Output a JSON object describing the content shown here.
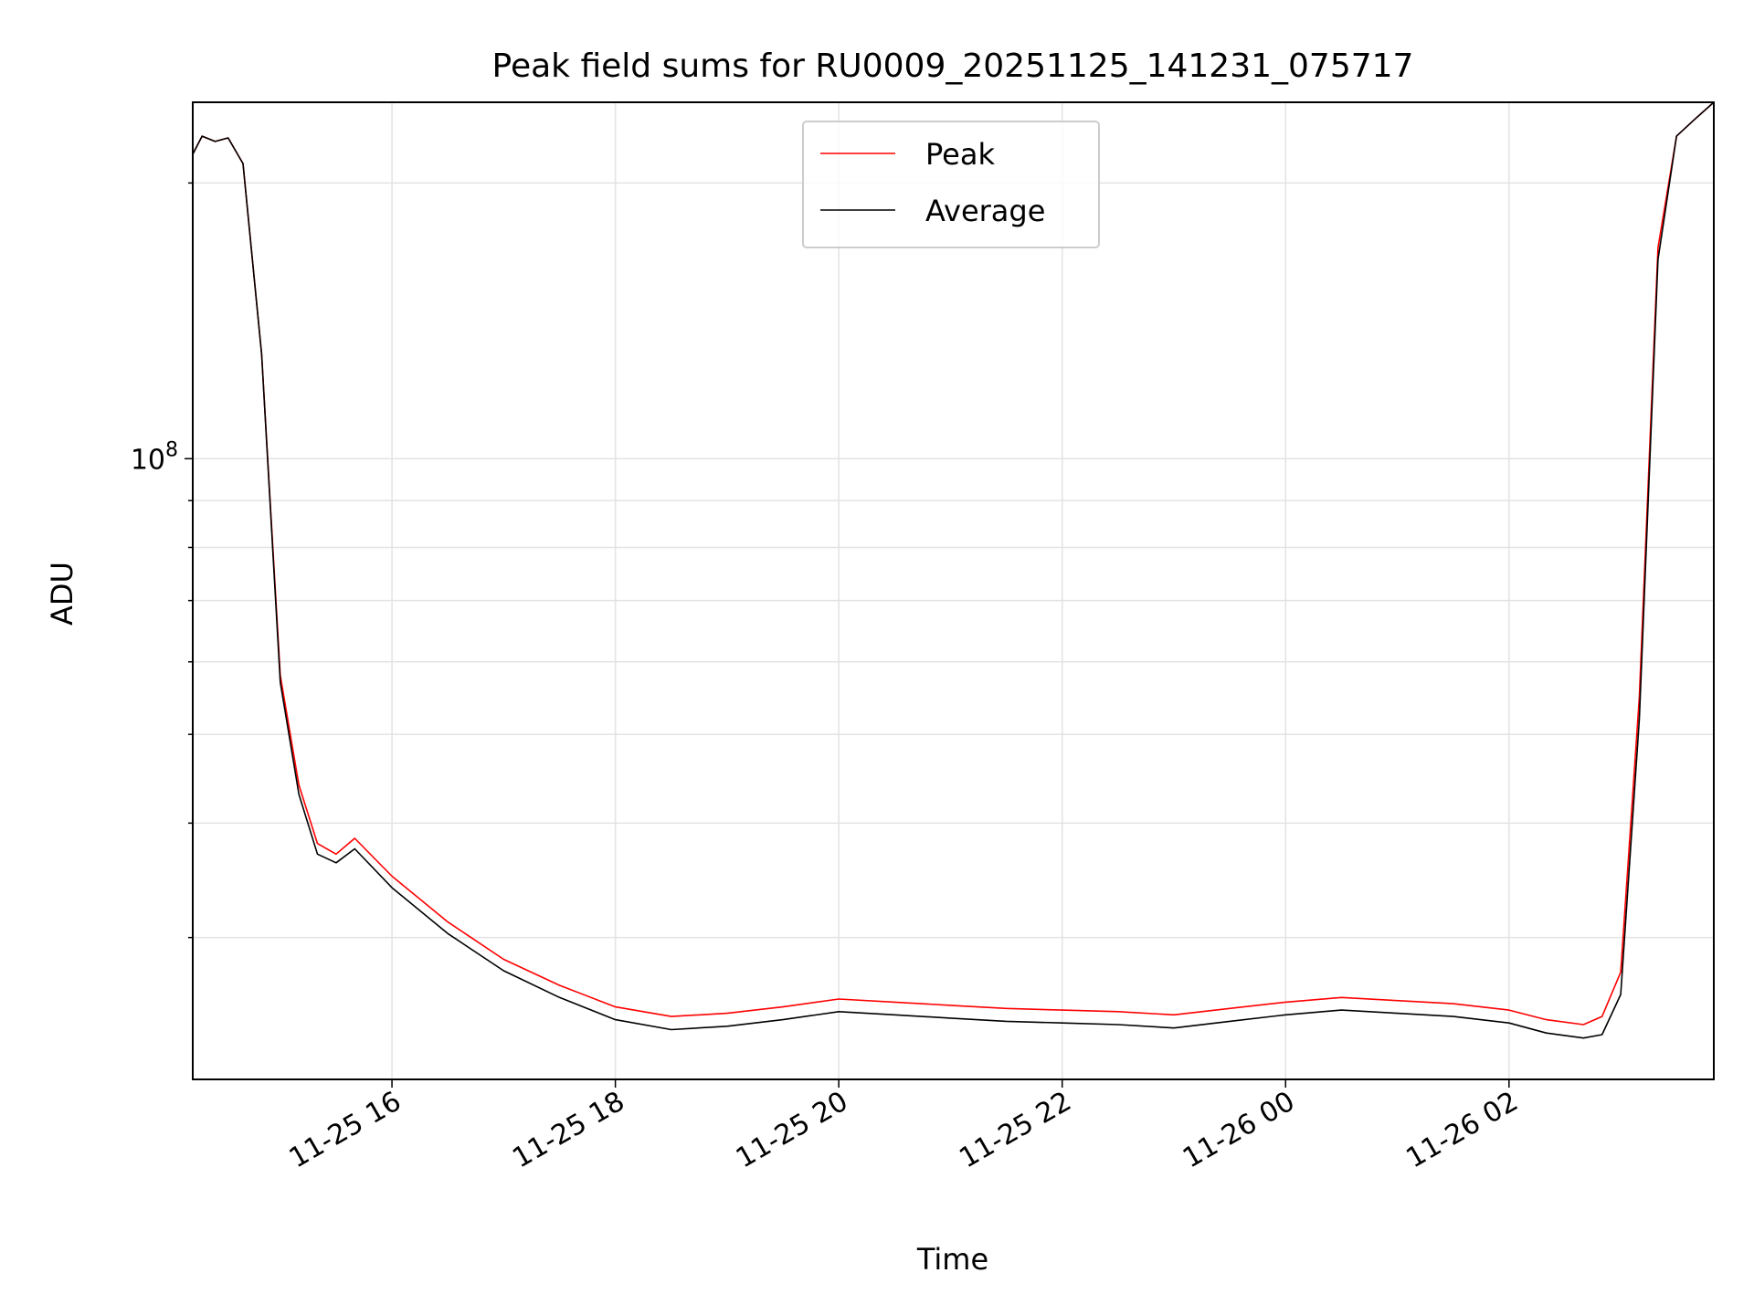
{
  "chart_data": {
    "type": "line",
    "title": "Peak field sums for RU0009_20251125_141231_075717",
    "xlabel": "Time",
    "ylabel": "ADU",
    "y_scale": "log",
    "ylim": [
      21000000,
      245000000
    ],
    "xlim": [
      "2025-11-25 14:13",
      "2025-11-26 03:50"
    ],
    "x_ticks": [
      "11-25 16",
      "11-25 18",
      "11-25 20",
      "11-25 22",
      "11-26 00",
      "11-26 02"
    ],
    "x_tick_values": [
      "2025-11-25 16:00",
      "2025-11-25 18:00",
      "2025-11-25 20:00",
      "2025-11-25 22:00",
      "2025-11-26 00:00",
      "2025-11-26 02:00"
    ],
    "y_major_ticks": [
      {
        "value": 100000000,
        "base": "10",
        "exp": "8"
      }
    ],
    "y_minor_ticks": [
      30000000,
      40000000,
      50000000,
      60000000,
      70000000,
      80000000,
      90000000,
      200000000
    ],
    "grid": true,
    "legend": {
      "position": "top-center",
      "entries": [
        "Peak",
        "Average"
      ]
    },
    "series": [
      {
        "name": "Peak",
        "color": "#ff0000",
        "x": [
          "2025-11-25 14:13",
          "2025-11-25 14:18",
          "2025-11-25 14:25",
          "2025-11-25 14:32",
          "2025-11-25 14:40",
          "2025-11-25 14:50",
          "2025-11-25 15:00",
          "2025-11-25 15:10",
          "2025-11-25 15:20",
          "2025-11-25 15:30",
          "2025-11-25 15:40",
          "2025-11-25 16:00",
          "2025-11-25 16:30",
          "2025-11-25 17:00",
          "2025-11-25 17:30",
          "2025-11-25 18:00",
          "2025-11-25 18:30",
          "2025-11-25 19:00",
          "2025-11-25 19:30",
          "2025-11-25 20:00",
          "2025-11-25 20:30",
          "2025-11-25 21:00",
          "2025-11-25 21:30",
          "2025-11-25 22:00",
          "2025-11-25 22:30",
          "2025-11-25 23:00",
          "2025-11-25 23:30",
          "2025-11-26 00:00",
          "2025-11-26 00:30",
          "2025-11-26 01:00",
          "2025-11-26 01:30",
          "2025-11-26 02:00",
          "2025-11-26 02:20",
          "2025-11-26 02:40",
          "2025-11-26 02:50",
          "2025-11-26 03:00",
          "2025-11-26 03:10",
          "2025-11-26 03:20",
          "2025-11-26 03:30",
          "2025-11-26 03:40",
          "2025-11-26 03:50"
        ],
        "y": [
          215000000,
          225000000,
          222000000,
          224000000,
          210000000,
          130000000,
          58000000,
          44000000,
          38000000,
          37000000,
          38500000,
          35000000,
          31200000,
          28400000,
          26600000,
          25200000,
          24600000,
          24800000,
          25200000,
          25700000,
          25500000,
          25300000,
          25100000,
          25000000,
          24900000,
          24700000,
          25100000,
          25500000,
          25800000,
          25600000,
          25400000,
          25000000,
          24400000,
          24100000,
          24600000,
          27500000,
          55000000,
          170000000,
          225000000,
          235000000,
          245000000
        ]
      },
      {
        "name": "Average",
        "color": "#000000",
        "x": [
          "2025-11-25 14:13",
          "2025-11-25 14:18",
          "2025-11-25 14:25",
          "2025-11-25 14:32",
          "2025-11-25 14:40",
          "2025-11-25 14:50",
          "2025-11-25 15:00",
          "2025-11-25 15:10",
          "2025-11-25 15:20",
          "2025-11-25 15:30",
          "2025-11-25 15:40",
          "2025-11-25 16:00",
          "2025-11-25 16:30",
          "2025-11-25 17:00",
          "2025-11-25 17:30",
          "2025-11-25 18:00",
          "2025-11-25 18:30",
          "2025-11-25 19:00",
          "2025-11-25 19:30",
          "2025-11-25 20:00",
          "2025-11-25 20:30",
          "2025-11-25 21:00",
          "2025-11-25 21:30",
          "2025-11-25 22:00",
          "2025-11-25 22:30",
          "2025-11-25 23:00",
          "2025-11-25 23:30",
          "2025-11-26 00:00",
          "2025-11-26 00:30",
          "2025-11-26 01:00",
          "2025-11-26 01:30",
          "2025-11-26 02:00",
          "2025-11-26 02:20",
          "2025-11-26 02:40",
          "2025-11-26 02:50",
          "2025-11-26 03:00",
          "2025-11-26 03:10",
          "2025-11-26 03:20",
          "2025-11-26 03:30",
          "2025-11-26 03:40",
          "2025-11-26 03:50"
        ],
        "y": [
          215000000,
          225000000,
          222000000,
          224000000,
          210000000,
          130000000,
          57000000,
          43000000,
          37000000,
          36200000,
          37500000,
          34000000,
          30300000,
          27600000,
          25800000,
          24400000,
          23800000,
          24000000,
          24400000,
          24900000,
          24700000,
          24500000,
          24300000,
          24200000,
          24100000,
          23900000,
          24300000,
          24700000,
          25000000,
          24800000,
          24600000,
          24200000,
          23600000,
          23300000,
          23500000,
          26000000,
          52000000,
          165000000,
          225000000,
          235000000,
          245000000
        ]
      }
    ]
  }
}
